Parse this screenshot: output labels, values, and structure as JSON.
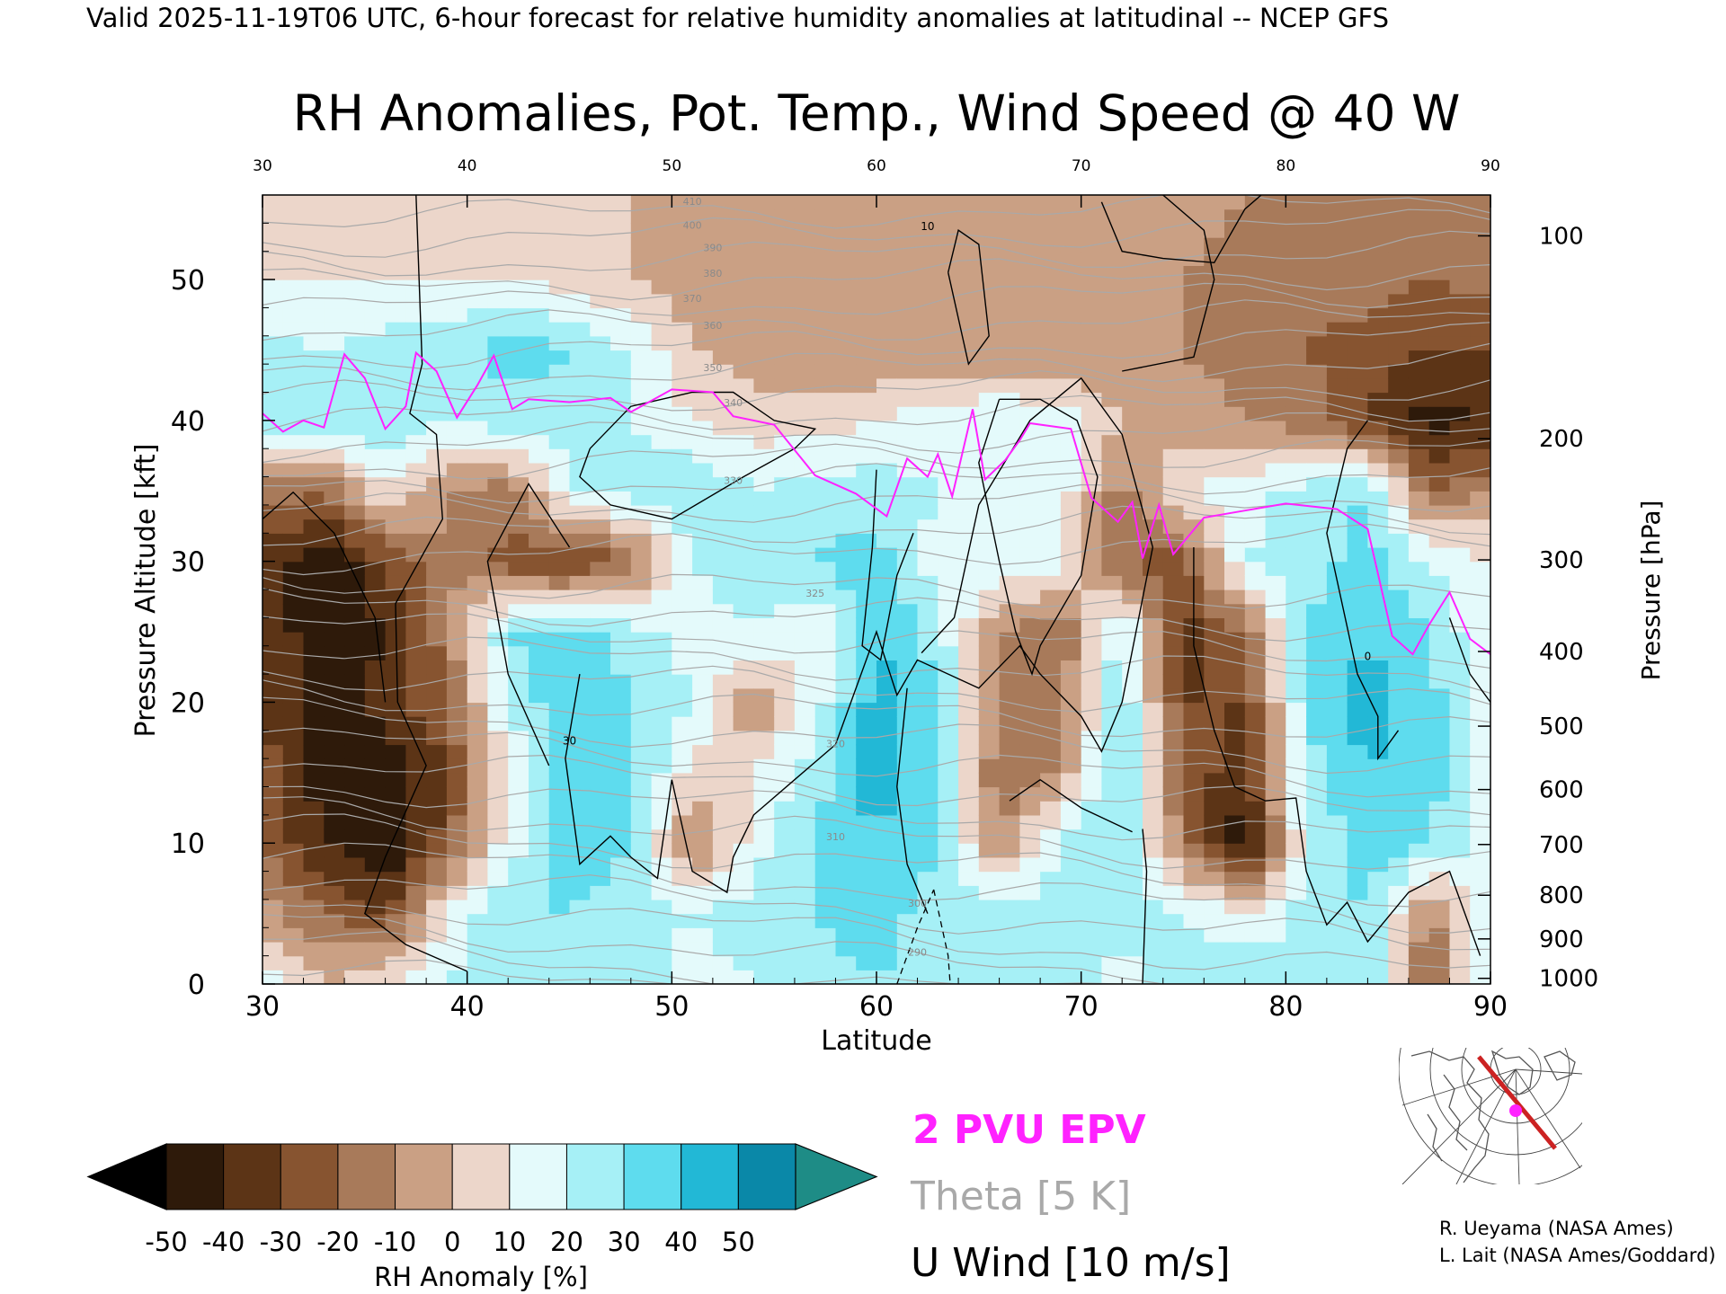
{
  "header": {
    "valid_line": "Valid 2025-11-19T06 UTC, 6-hour forecast for relative humidity anomalies at latitudinal -- NCEP GFS"
  },
  "chart_data": {
    "type": "heatmap",
    "title": "RH Anomalies, Pot. Temp., Wind Speed @ 40 W",
    "xlabel": "Latitude",
    "ylabel": "Pressure Altitude [kft]",
    "ylabel_right": "Pressure [hPa]",
    "xlim": [
      30,
      90
    ],
    "ylim": [
      0,
      56
    ],
    "x_ticks": [
      "30",
      "40",
      "50",
      "60",
      "70",
      "80",
      "90"
    ],
    "y_ticks": [
      "0",
      "10",
      "20",
      "30",
      "40",
      "50"
    ],
    "pressure_ticks": [
      {
        "label": "100",
        "kft": 53.1
      },
      {
        "label": "200",
        "kft": 38.7
      },
      {
        "label": "300",
        "kft": 30.1
      },
      {
        "label": "400",
        "kft": 23.6
      },
      {
        "label": "500",
        "kft": 18.3
      },
      {
        "label": "600",
        "kft": 13.8
      },
      {
        "label": "700",
        "kft": 9.9
      },
      {
        "label": "800",
        "kft": 6.3
      },
      {
        "label": "900",
        "kft": 3.2
      },
      {
        "label": "1000",
        "kft": 0.4
      }
    ],
    "colorbar": {
      "label": "RH Anomaly [%]",
      "ticks": [
        "-50",
        "-40",
        "-30",
        "-20",
        "-10",
        "0",
        "10",
        "20",
        "30",
        "40",
        "50"
      ],
      "bin_colors": [
        "#2e1a0a",
        "#5c3416",
        "#875430",
        "#a87a5a",
        "#caa084",
        "#ecd6ca",
        "#e4fafb",
        "#a6f0f6",
        "#5edcee",
        "#22b8d6",
        "#0a88a8"
      ],
      "under_color": "#000000",
      "over_color": "#1e8c86"
    },
    "legend": {
      "epv_label": "2 PVU EPV",
      "theta_label": "Theta [5 K]",
      "wind_label": "U Wind [10 m/s]",
      "epv_color": "#ff22ff",
      "theta_color": "#a9a9a9",
      "wind_color": "#000000"
    },
    "theta_labels": [
      "410",
      "400",
      "390",
      "380",
      "370",
      "360",
      "350",
      "340",
      "330",
      "325",
      "320",
      "310",
      "300",
      "290"
    ],
    "wind_labels": [
      "10",
      "30",
      "0"
    ],
    "rh_grid": {
      "lats": [
        30,
        33,
        36,
        39,
        42,
        45,
        48,
        51,
        54,
        57,
        60,
        63,
        66,
        69,
        72,
        75,
        78,
        81,
        84,
        87,
        90
      ],
      "kft": [
        0,
        5,
        10,
        15,
        20,
        25,
        30,
        35,
        40,
        45,
        50,
        56
      ],
      "values": [
        [
          15,
          0,
          10,
          20,
          30,
          25,
          25,
          15,
          20,
          25,
          30,
          25,
          20,
          25,
          15,
          25,
          30,
          20,
          30,
          -25,
          25
        ],
        [
          -5,
          -20,
          -30,
          10,
          30,
          30,
          25,
          20,
          25,
          30,
          35,
          25,
          25,
          20,
          25,
          20,
          10,
          25,
          30,
          -15,
          20
        ],
        [
          -20,
          -40,
          -52,
          -25,
          15,
          35,
          30,
          -15,
          15,
          30,
          40,
          30,
          -10,
          25,
          30,
          -15,
          -50,
          20,
          35,
          30,
          15
        ],
        [
          -25,
          -45,
          -50,
          -30,
          10,
          40,
          35,
          5,
          10,
          25,
          45,
          35,
          -20,
          -10,
          35,
          -25,
          -35,
          25,
          40,
          35,
          15
        ],
        [
          -30,
          -45,
          -35,
          -20,
          20,
          40,
          30,
          20,
          -10,
          15,
          45,
          30,
          -15,
          -15,
          30,
          -30,
          -30,
          30,
          45,
          35,
          10
        ],
        [
          -30,
          -50,
          -40,
          -15,
          30,
          35,
          25,
          15,
          20,
          10,
          40,
          25,
          -10,
          -20,
          25,
          -35,
          -20,
          30,
          40,
          30,
          10
        ],
        [
          -35,
          -50,
          -30,
          -10,
          -25,
          -30,
          -20,
          20,
          25,
          30,
          35,
          15,
          20,
          15,
          -20,
          -25,
          20,
          25,
          35,
          20,
          10
        ],
        [
          -15,
          -20,
          10,
          -10,
          -15,
          20,
          25,
          30,
          20,
          25,
          25,
          20,
          20,
          15,
          -15,
          10,
          15,
          25,
          30,
          -20,
          -10
        ],
        [
          30,
          25,
          30,
          20,
          25,
          25,
          20,
          10,
          5,
          5,
          10,
          15,
          20,
          15,
          0,
          -5,
          -10,
          -15,
          -30,
          -45,
          -40
        ],
        [
          25,
          20,
          25,
          25,
          35,
          30,
          20,
          0,
          -5,
          -10,
          -10,
          -10,
          -10,
          -10,
          -10,
          -10,
          -15,
          -20,
          -25,
          -30,
          -30
        ],
        [
          10,
          10,
          10,
          10,
          10,
          5,
          0,
          -5,
          -10,
          -10,
          -5,
          -5,
          -10,
          -10,
          -10,
          -10,
          -15,
          -15,
          -15,
          -20,
          -15
        ],
        [
          5,
          5,
          5,
          5,
          5,
          0,
          0,
          -5,
          -5,
          -5,
          -5,
          -5,
          -5,
          -5,
          -5,
          -5,
          -10,
          -10,
          -10,
          -10,
          -10
        ]
      ]
    },
    "epv_2pvu": [
      {
        "x": 30,
        "y": 40.5
      },
      {
        "x": 31,
        "y": 39.2
      },
      {
        "x": 32,
        "y": 40
      },
      {
        "x": 33,
        "y": 39.5
      },
      {
        "x": 34,
        "y": 44.7
      },
      {
        "x": 35,
        "y": 43
      },
      {
        "x": 36,
        "y": 39.4
      },
      {
        "x": 37,
        "y": 41
      },
      {
        "x": 37.5,
        "y": 44.8
      },
      {
        "x": 38.5,
        "y": 43.5
      },
      {
        "x": 39.5,
        "y": 40.2
      },
      {
        "x": 40.5,
        "y": 42.5
      },
      {
        "x": 41.3,
        "y": 44.6
      },
      {
        "x": 42.2,
        "y": 40.8
      },
      {
        "x": 43,
        "y": 41.5
      },
      {
        "x": 45,
        "y": 41.3
      },
      {
        "x": 47,
        "y": 41.6
      },
      {
        "x": 48,
        "y": 40.6
      },
      {
        "x": 50,
        "y": 42.2
      },
      {
        "x": 52,
        "y": 42
      },
      {
        "x": 53,
        "y": 40.3
      },
      {
        "x": 55,
        "y": 39.7
      },
      {
        "x": 57,
        "y": 36.1
      },
      {
        "x": 59,
        "y": 34.8
      },
      {
        "x": 60.5,
        "y": 33.2
      },
      {
        "x": 61.5,
        "y": 37.3
      },
      {
        "x": 62.5,
        "y": 36
      },
      {
        "x": 63,
        "y": 37.6
      },
      {
        "x": 63.7,
        "y": 34.6
      },
      {
        "x": 64.7,
        "y": 40.8
      },
      {
        "x": 65.3,
        "y": 35.8
      },
      {
        "x": 66.3,
        "y": 37.2
      },
      {
        "x": 67,
        "y": 38.6
      },
      {
        "x": 67.5,
        "y": 39.8
      },
      {
        "x": 69.5,
        "y": 39.4
      },
      {
        "x": 70.5,
        "y": 34.5
      },
      {
        "x": 71.8,
        "y": 32.8
      },
      {
        "x": 72.5,
        "y": 34.2
      },
      {
        "x": 73,
        "y": 30.2
      },
      {
        "x": 73.8,
        "y": 34
      },
      {
        "x": 74.5,
        "y": 30.5
      },
      {
        "x": 76,
        "y": 33.1
      },
      {
        "x": 78,
        "y": 33.6
      },
      {
        "x": 80,
        "y": 34.1
      },
      {
        "x": 82.5,
        "y": 33.7
      },
      {
        "x": 84,
        "y": 32.3
      },
      {
        "x": 85.2,
        "y": 24.7
      },
      {
        "x": 86.2,
        "y": 23.4
      },
      {
        "x": 87,
        "y": 25.5
      },
      {
        "x": 88,
        "y": 27.8
      },
      {
        "x": 89,
        "y": 24.5
      },
      {
        "x": 90,
        "y": 23.4
      }
    ]
  },
  "credits": {
    "line1": "R. Ueyama (NASA Ames)",
    "line2": "L. Lait (NASA Ames/Goddard)"
  },
  "locator_map": {
    "land_color": "#555555",
    "track_color": "#cc2222",
    "marker_color": "#ff22ff"
  }
}
